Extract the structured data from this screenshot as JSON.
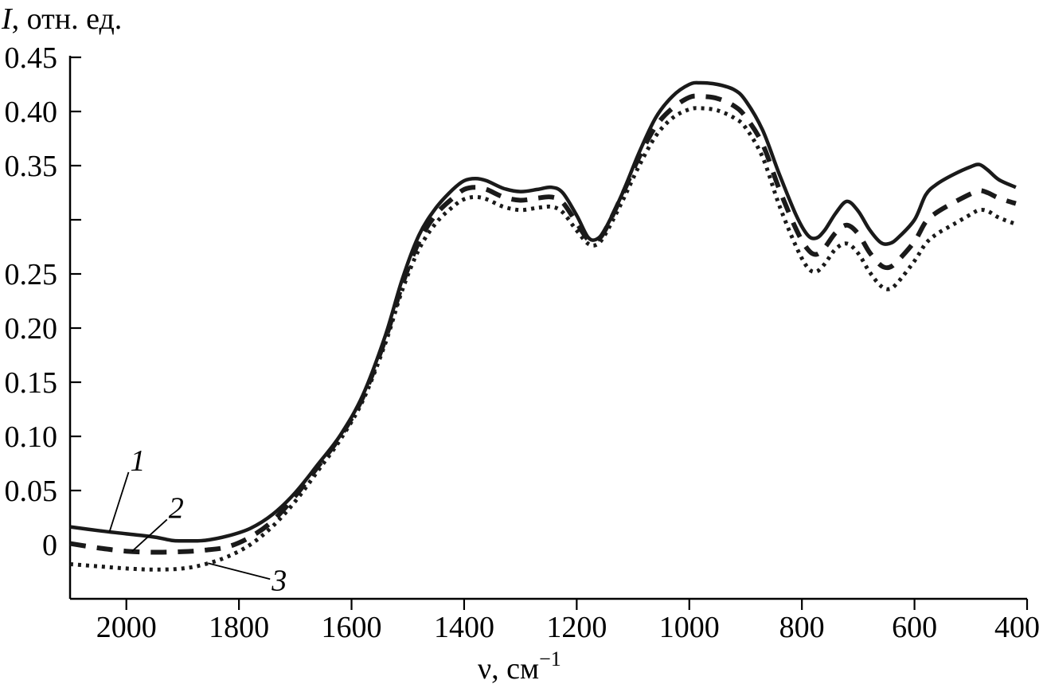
{
  "chart_data": {
    "type": "line",
    "ylabel_symbol": "I",
    "ylabel_rest": ", отн. ед.",
    "xlabel_main": "ν, см",
    "xlabel_sup": "−1",
    "xlim": [
      2100,
      400
    ],
    "ylim": [
      -0.05,
      0.45
    ],
    "x_ticks": [
      2000,
      1800,
      1600,
      1400,
      1200,
      1000,
      800,
      600,
      400
    ],
    "x_tick_labels": [
      "2000",
      "1800",
      "1600",
      "1400",
      "1200",
      "1000",
      "800",
      "600",
      "400"
    ],
    "y_ticks": [
      0,
      0.05,
      0.1,
      0.15,
      0.2,
      0.25,
      0.35,
      0.4,
      0.45
    ],
    "y_tick_labels": [
      "0",
      "0.05",
      "0.10",
      "0.15",
      "0.20",
      "0.25",
      "0.35",
      "0.40",
      "0.45"
    ],
    "y_tick_axis_marks": [
      0,
      0.05,
      0.1,
      0.15,
      0.2,
      0.25,
      0.3,
      0.35,
      0.4,
      0.45
    ],
    "grid": false,
    "series": [
      {
        "label": "1",
        "style": "solid",
        "points": [
          [
            2100,
            0.0165
          ],
          [
            2050,
            0.013
          ],
          [
            2000,
            0.01
          ],
          [
            1950,
            0.007
          ],
          [
            1920,
            0.004
          ],
          [
            1900,
            0.0035
          ],
          [
            1860,
            0.004
          ],
          [
            1820,
            0.008
          ],
          [
            1780,
            0.015
          ],
          [
            1740,
            0.028
          ],
          [
            1700,
            0.048
          ],
          [
            1660,
            0.074
          ],
          [
            1620,
            0.101
          ],
          [
            1580,
            0.138
          ],
          [
            1540,
            0.193
          ],
          [
            1510,
            0.245
          ],
          [
            1480,
            0.286
          ],
          [
            1450,
            0.311
          ],
          [
            1420,
            0.328
          ],
          [
            1400,
            0.336
          ],
          [
            1380,
            0.338
          ],
          [
            1360,
            0.336
          ],
          [
            1330,
            0.329
          ],
          [
            1300,
            0.326
          ],
          [
            1270,
            0.328
          ],
          [
            1245,
            0.33
          ],
          [
            1225,
            0.325
          ],
          [
            1200,
            0.304
          ],
          [
            1180,
            0.284
          ],
          [
            1165,
            0.282
          ],
          [
            1150,
            0.291
          ],
          [
            1120,
            0.323
          ],
          [
            1090,
            0.361
          ],
          [
            1060,
            0.394
          ],
          [
            1030,
            0.414
          ],
          [
            1000,
            0.425
          ],
          [
            980,
            0.4265
          ],
          [
            950,
            0.425
          ],
          [
            920,
            0.42
          ],
          [
            900,
            0.41
          ],
          [
            870,
            0.383
          ],
          [
            840,
            0.342
          ],
          [
            810,
            0.304
          ],
          [
            790,
            0.286
          ],
          [
            775,
            0.283
          ],
          [
            760,
            0.29
          ],
          [
            740,
            0.306
          ],
          [
            720,
            0.317
          ],
          [
            700,
            0.308
          ],
          [
            680,
            0.291
          ],
          [
            660,
            0.279
          ],
          [
            645,
            0.278
          ],
          [
            630,
            0.283
          ],
          [
            600,
            0.3
          ],
          [
            580,
            0.323
          ],
          [
            560,
            0.333
          ],
          [
            530,
            0.342
          ],
          [
            500,
            0.349
          ],
          [
            485,
            0.351
          ],
          [
            470,
            0.346
          ],
          [
            450,
            0.337
          ],
          [
            420,
            0.33
          ]
        ]
      },
      {
        "label": "2",
        "style": "dashed",
        "points": [
          [
            2100,
            0.001
          ],
          [
            2050,
            -0.003
          ],
          [
            2000,
            -0.006
          ],
          [
            1950,
            -0.007
          ],
          [
            1900,
            -0.0065
          ],
          [
            1860,
            -0.005
          ],
          [
            1820,
            -0.002
          ],
          [
            1780,
            0.007
          ],
          [
            1740,
            0.022
          ],
          [
            1700,
            0.045
          ],
          [
            1660,
            0.072
          ],
          [
            1620,
            0.1
          ],
          [
            1580,
            0.136
          ],
          [
            1540,
            0.19
          ],
          [
            1510,
            0.24
          ],
          [
            1480,
            0.28
          ],
          [
            1450,
            0.305
          ],
          [
            1420,
            0.32
          ],
          [
            1400,
            0.328
          ],
          [
            1380,
            0.33
          ],
          [
            1360,
            0.328
          ],
          [
            1330,
            0.321
          ],
          [
            1300,
            0.318
          ],
          [
            1270,
            0.32
          ],
          [
            1245,
            0.321
          ],
          [
            1225,
            0.316
          ],
          [
            1200,
            0.297
          ],
          [
            1180,
            0.282
          ],
          [
            1165,
            0.281
          ],
          [
            1150,
            0.29
          ],
          [
            1120,
            0.322
          ],
          [
            1090,
            0.357
          ],
          [
            1060,
            0.386
          ],
          [
            1030,
            0.403
          ],
          [
            1000,
            0.413
          ],
          [
            980,
            0.414
          ],
          [
            950,
            0.412
          ],
          [
            920,
            0.405
          ],
          [
            900,
            0.395
          ],
          [
            870,
            0.37
          ],
          [
            840,
            0.328
          ],
          [
            810,
            0.291
          ],
          [
            790,
            0.273
          ],
          [
            775,
            0.268
          ],
          [
            760,
            0.274
          ],
          [
            740,
            0.288
          ],
          [
            720,
            0.295
          ],
          [
            700,
            0.287
          ],
          [
            680,
            0.27
          ],
          [
            660,
            0.258
          ],
          [
            645,
            0.256
          ],
          [
            630,
            0.262
          ],
          [
            600,
            0.28
          ],
          [
            580,
            0.298
          ],
          [
            560,
            0.307
          ],
          [
            530,
            0.316
          ],
          [
            500,
            0.324
          ],
          [
            485,
            0.327
          ],
          [
            470,
            0.325
          ],
          [
            450,
            0.32
          ],
          [
            420,
            0.315
          ]
        ]
      },
      {
        "label": "3",
        "style": "dotted",
        "points": [
          [
            2100,
            -0.018
          ],
          [
            2050,
            -0.02
          ],
          [
            2000,
            -0.022
          ],
          [
            1950,
            -0.023
          ],
          [
            1900,
            -0.022
          ],
          [
            1860,
            -0.018
          ],
          [
            1820,
            -0.011
          ],
          [
            1780,
            0.0
          ],
          [
            1740,
            0.017
          ],
          [
            1700,
            0.04
          ],
          [
            1660,
            0.068
          ],
          [
            1620,
            0.097
          ],
          [
            1580,
            0.133
          ],
          [
            1540,
            0.186
          ],
          [
            1510,
            0.235
          ],
          [
            1480,
            0.273
          ],
          [
            1450,
            0.297
          ],
          [
            1420,
            0.312
          ],
          [
            1400,
            0.319
          ],
          [
            1380,
            0.321
          ],
          [
            1360,
            0.319
          ],
          [
            1330,
            0.312
          ],
          [
            1300,
            0.309
          ],
          [
            1270,
            0.311
          ],
          [
            1245,
            0.312
          ],
          [
            1225,
            0.307
          ],
          [
            1200,
            0.29
          ],
          [
            1180,
            0.278
          ],
          [
            1165,
            0.277
          ],
          [
            1150,
            0.286
          ],
          [
            1120,
            0.316
          ],
          [
            1090,
            0.349
          ],
          [
            1060,
            0.377
          ],
          [
            1030,
            0.394
          ],
          [
            1000,
            0.402
          ],
          [
            980,
            0.403
          ],
          [
            950,
            0.401
          ],
          [
            920,
            0.394
          ],
          [
            900,
            0.385
          ],
          [
            870,
            0.358
          ],
          [
            840,
            0.313
          ],
          [
            810,
            0.275
          ],
          [
            790,
            0.256
          ],
          [
            775,
            0.252
          ],
          [
            760,
            0.259
          ],
          [
            740,
            0.273
          ],
          [
            720,
            0.278
          ],
          [
            700,
            0.269
          ],
          [
            680,
            0.252
          ],
          [
            660,
            0.239
          ],
          [
            645,
            0.236
          ],
          [
            630,
            0.242
          ],
          [
            600,
            0.262
          ],
          [
            580,
            0.278
          ],
          [
            560,
            0.287
          ],
          [
            530,
            0.296
          ],
          [
            500,
            0.305
          ],
          [
            485,
            0.309
          ],
          [
            470,
            0.308
          ],
          [
            450,
            0.302
          ],
          [
            420,
            0.296
          ]
        ]
      }
    ],
    "annotations": [
      {
        "text": "1",
        "series": "1",
        "target_x": 2030
      },
      {
        "text": "2",
        "series": "2",
        "target_x": 1990
      },
      {
        "text": "3",
        "series": "3",
        "target_x": 1855
      }
    ]
  }
}
